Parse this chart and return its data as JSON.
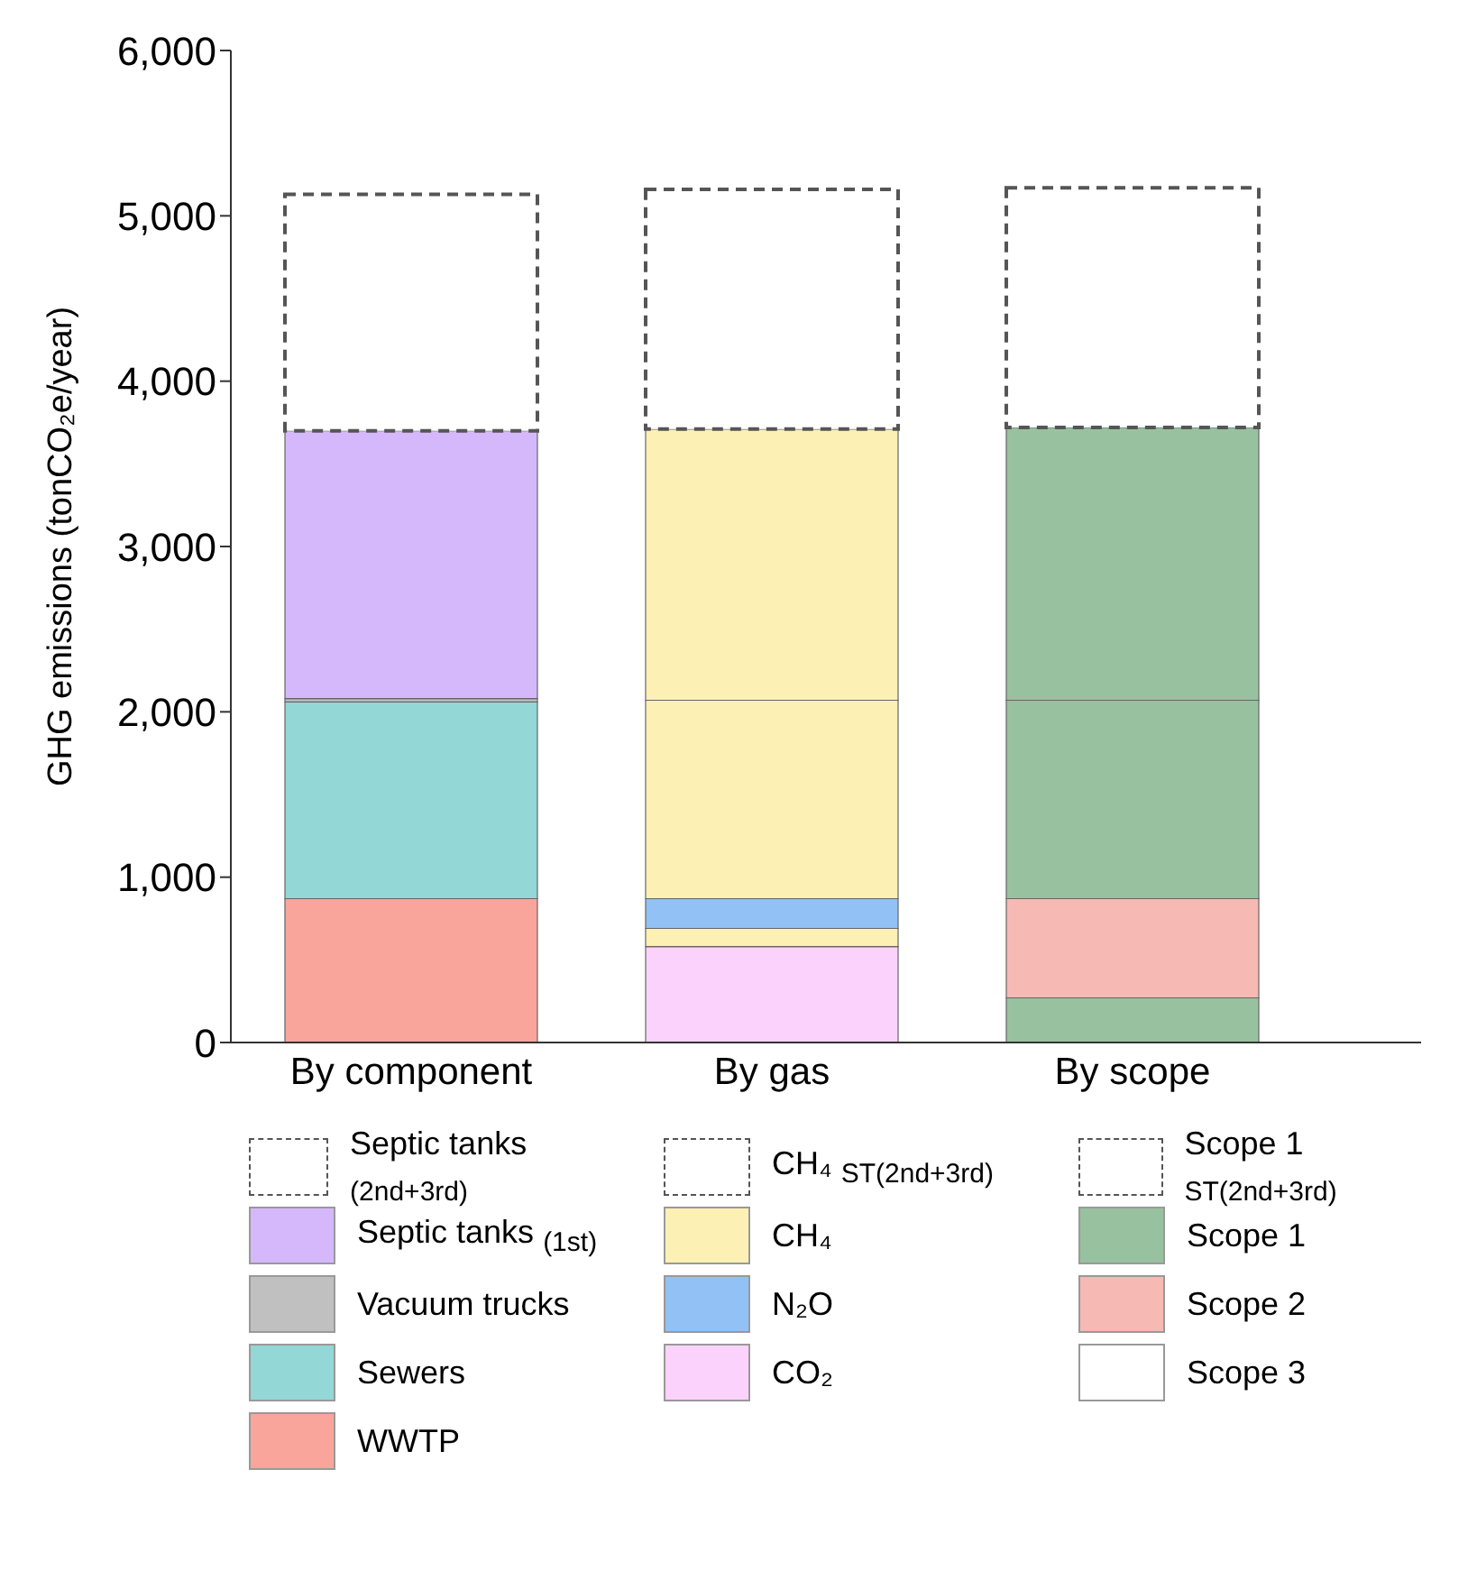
{
  "chart_data": {
    "type": "bar",
    "stacked": true,
    "ylabel": "GHG emissions (tonCO₂e/year)",
    "categories": [
      "By component",
      "By gas",
      "By scope"
    ],
    "ylim": [
      0,
      6000
    ],
    "yticks": [
      0,
      {
        "value": 1000,
        "label": "1,000"
      },
      {
        "value": 2000,
        "label": "2,000"
      },
      {
        "value": 3000,
        "label": "3,000"
      },
      {
        "value": 4000,
        "label": "4,000"
      },
      {
        "value": 5000,
        "label": "5,000"
      },
      {
        "value": 6000,
        "label": "6,000"
      }
    ],
    "grid": false,
    "legend": "bottom",
    "series": [
      {
        "name": "WWTP",
        "color": "#f9a59c",
        "values": [
          870,
          null,
          null
        ]
      },
      {
        "name": "Sewers",
        "color": "#93d7d6",
        "values": [
          1190,
          null,
          null
        ]
      },
      {
        "name": "Vacuum trucks",
        "color": "#c0c0c0",
        "values": [
          20,
          null,
          null
        ]
      },
      {
        "name": "Septic tanks $_{(1st)}$",
        "color": "#d5b8fb",
        "values": [
          1620,
          null,
          null
        ]
      },
      {
        "name": "Septic tanks $_{(2nd+3rd)}$",
        "color": "#ffffff",
        "line_style": "dashed",
        "values": [
          1430,
          null,
          null
        ]
      },
      {
        "name": "CO₂",
        "color": "#fbd2fb",
        "values": [
          null,
          580,
          null
        ]
      },
      {
        "color": "#fdf0b5",
        "values": [
          null,
          110,
          null
        ]
      },
      {
        "name": "N₂O",
        "color": "#91c1f5",
        "values": [
          null,
          180,
          null
        ]
      },
      {
        "name": "CH₄",
        "color": "#fdf0b5",
        "values": [
          null,
          1200,
          null
        ]
      },
      {
        "color": "#fdf0b5",
        "values": [
          null,
          1640,
          null
        ]
      },
      {
        "name": "CH₄ $_{ST(2nd+3rd)}$",
        "color": "#ffffff",
        "line_style": "dashed",
        "values": [
          null,
          1450,
          null
        ]
      },
      {
        "name": "Scope 3",
        "color": "#ffffff",
        "values": [
          null,
          null,
          0
        ]
      },
      {
        "color": "#98c1a0",
        "values": [
          null,
          null,
          270
        ]
      },
      {
        "name": "Scope 2",
        "color": "#f6b9b4",
        "values": [
          null,
          null,
          600
        ]
      },
      {
        "name": "Scope 1",
        "color": "#98c1a0",
        "values": [
          null,
          null,
          1200
        ]
      },
      {
        "color": "#98c1a0",
        "values": [
          null,
          null,
          1650
        ]
      },
      {
        "name": "Scope 1 $_{ST(2nd+3rd)}$",
        "color": "#ffffff",
        "line_style": "dashed",
        "values": [
          null,
          null,
          1450
        ]
      }
    ]
  }
}
